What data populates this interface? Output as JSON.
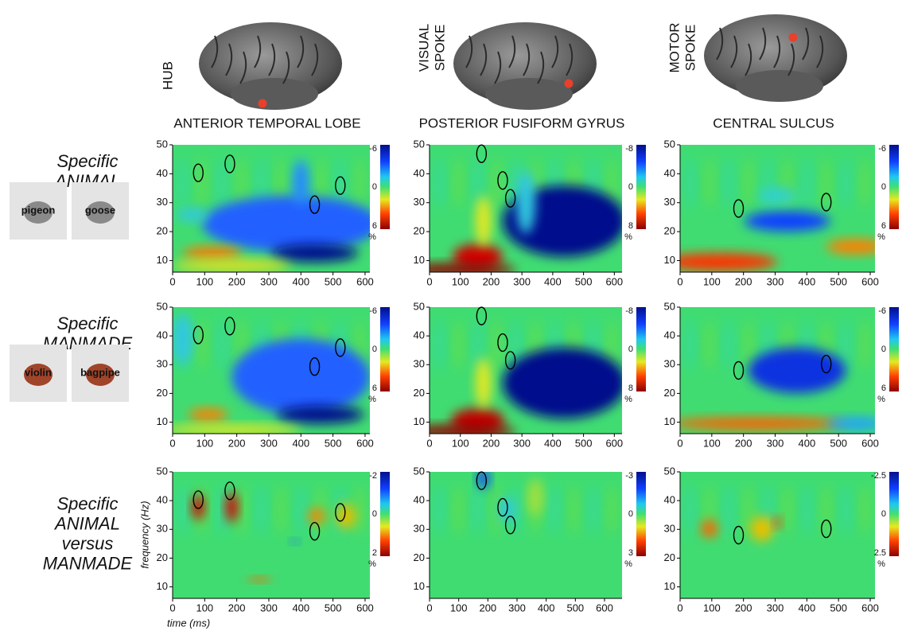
{
  "columns": [
    {
      "label": [
        "HUB"
      ],
      "region": "ANTERIOR TEMPORAL LOBE"
    },
    {
      "label": [
        "VISUAL",
        "SPOKE"
      ],
      "region": "POSTERIOR FUSIFORM GYRUS"
    },
    {
      "label": [
        "MOTOR",
        "SPOKE"
      ],
      "region": "CENTRAL SULCUS"
    }
  ],
  "rows": [
    {
      "label": [
        "Specific",
        "ANIMAL"
      ],
      "images": [
        "pigeon",
        "goose"
      ]
    },
    {
      "label": [
        "Specific",
        "MANMADE"
      ],
      "images": [
        "violin",
        "bagpipe"
      ]
    },
    {
      "label": [
        "Specific",
        "ANIMAL",
        "versus",
        "MANMADE"
      ],
      "images": []
    }
  ],
  "y_label": "frequency (Hz)",
  "x_label": "time (ms)",
  "panels": [
    [
      {
        "xlim": [
          0,
          615
        ],
        "xticks": [
          0,
          100,
          200,
          300,
          400,
          500,
          600
        ],
        "ylim": [
          6,
          50
        ],
        "yticks": [
          10,
          20,
          30,
          40,
          50
        ],
        "cbar_ticks": [
          -6,
          0,
          6
        ],
        "cbar_unit": "%"
      },
      {
        "xlim": [
          0,
          625
        ],
        "xticks": [
          0,
          100,
          200,
          300,
          400,
          500,
          600
        ],
        "ylim": [
          6,
          50
        ],
        "yticks": [
          10,
          20,
          30,
          40,
          50
        ],
        "cbar_ticks": [
          -8,
          0,
          8
        ],
        "cbar_unit": "%"
      },
      {
        "xlim": [
          0,
          615
        ],
        "xticks": [
          0,
          100,
          200,
          300,
          400,
          500,
          600
        ],
        "ylim": [
          6,
          50
        ],
        "yticks": [
          10,
          20,
          30,
          40,
          50
        ],
        "cbar_ticks": [
          -6,
          0,
          6
        ],
        "cbar_unit": "%"
      }
    ],
    [
      {
        "xlim": [
          0,
          615
        ],
        "xticks": [
          0,
          100,
          200,
          300,
          400,
          500,
          600
        ],
        "ylim": [
          6,
          50
        ],
        "yticks": [
          10,
          20,
          30,
          40,
          50
        ],
        "cbar_ticks": [
          -6,
          0,
          6
        ],
        "cbar_unit": "%"
      },
      {
        "xlim": [
          0,
          625
        ],
        "xticks": [
          0,
          100,
          200,
          300,
          400,
          500,
          600
        ],
        "ylim": [
          6,
          50
        ],
        "yticks": [
          10,
          20,
          30,
          40,
          50
        ],
        "cbar_ticks": [
          -8,
          0,
          8
        ],
        "cbar_unit": "%"
      },
      {
        "xlim": [
          0,
          615
        ],
        "xticks": [
          0,
          100,
          200,
          300,
          400,
          500,
          600
        ],
        "ylim": [
          6,
          50
        ],
        "yticks": [
          10,
          20,
          30,
          40,
          50
        ],
        "cbar_ticks": [
          -6,
          0,
          6
        ],
        "cbar_unit": "%"
      }
    ],
    [
      {
        "xlim": [
          0,
          615
        ],
        "xticks": [
          0,
          100,
          200,
          300,
          400,
          500,
          600
        ],
        "ylim": [
          6,
          50
        ],
        "yticks": [
          10,
          20,
          30,
          40,
          50
        ],
        "cbar_ticks": [
          -2,
          0,
          2
        ],
        "cbar_unit": "%"
      },
      {
        "xlim": [
          0,
          660
        ],
        "xticks": [
          0,
          100,
          200,
          300,
          400,
          500,
          600
        ],
        "ylim": [
          6,
          50
        ],
        "yticks": [
          10,
          20,
          30,
          40,
          50
        ],
        "cbar_ticks": [
          -3,
          0,
          3
        ],
        "cbar_unit": "%"
      },
      {
        "xlim": [
          0,
          615
        ],
        "xticks": [
          0,
          100,
          200,
          300,
          400,
          500,
          600
        ],
        "ylim": [
          6,
          50
        ],
        "yticks": [
          10,
          20,
          30,
          40,
          50
        ],
        "cbar_ticks": [
          -2.5,
          0,
          2.5
        ],
        "cbar_unit": "%"
      }
    ]
  ]
}
